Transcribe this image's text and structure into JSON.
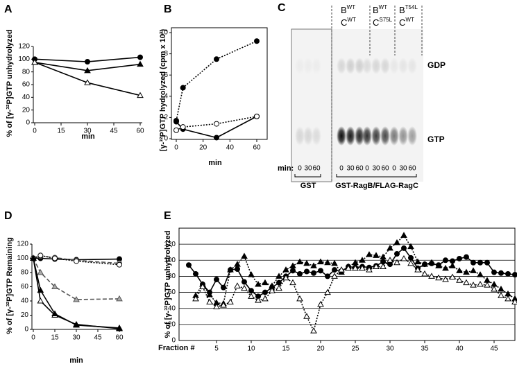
{
  "chart_data": [
    {
      "type": "line",
      "panel": "A",
      "ylabel": "% of [γ-³²P]GTP unhydrolyzed",
      "xlabel": "min",
      "x": [
        0,
        30,
        60
      ],
      "xlim": [
        0,
        60
      ],
      "xticks": [
        0,
        15,
        30,
        45,
        60
      ],
      "ylim": [
        0,
        120
      ],
      "yticks": [
        0,
        20,
        40,
        60,
        80,
        100,
        120
      ],
      "series": [
        {
          "color": "#000000",
          "marker": "circle",
          "fill": "#000000",
          "dash": "solid",
          "values": [
            100,
            96,
            103
          ]
        },
        {
          "color": "#000000",
          "marker": "triangle",
          "fill": "#000000",
          "dash": "solid",
          "values": [
            95,
            82,
            92
          ]
        },
        {
          "color": "#000000",
          "marker": "triangle",
          "fill": "#ffffff",
          "dash": "solid",
          "values": [
            95,
            63,
            43
          ]
        }
      ]
    },
    {
      "type": "line",
      "panel": "B",
      "ylabel": "[γ-³²P]GTP hydrolyzed (cpm x 10³)",
      "xlabel": "min",
      "x": [
        0,
        5,
        30,
        60
      ],
      "xlim": [
        0,
        60
      ],
      "xticks": [
        0,
        20,
        40,
        60
      ],
      "ylim": [
        0,
        10
      ],
      "yticks": [
        0,
        2,
        4,
        6,
        8,
        10
      ],
      "series": [
        {
          "color": "#000000",
          "marker": "circle",
          "fill": "#000000",
          "dash": "dotted",
          "values": [
            1.7,
            4.8,
            7.5,
            9.2
          ]
        },
        {
          "color": "#000000",
          "marker": "circle",
          "fill": "#000000",
          "dash": "solid",
          "values": [
            1.6,
            0.9,
            0.1,
            2.1
          ]
        },
        {
          "color": "#000000",
          "marker": "circle",
          "fill": "#ffffff",
          "dash": "dotted",
          "values": [
            0.8,
            1.1,
            1.4,
            2.1
          ]
        }
      ]
    },
    {
      "type": "line",
      "panel": "D",
      "ylabel": "% of [γ-³²P]GTP Remaining",
      "xlabel": "min",
      "x": [
        0,
        5,
        15,
        30,
        60
      ],
      "xlim": [
        0,
        60
      ],
      "xticks": [
        0,
        15,
        30,
        45,
        60
      ],
      "ylim": [
        0,
        120
      ],
      "yticks": [
        0,
        20,
        40,
        60,
        80,
        100,
        120
      ],
      "series": [
        {
          "color": "#000000",
          "marker": "circle",
          "fill": "#000000",
          "dash": "solid",
          "values": [
            100,
            100,
            99,
            98,
            99
          ]
        },
        {
          "color": "#555555",
          "marker": "circle",
          "fill": "#aaaaaa",
          "dash": "dashed",
          "values": [
            100,
            103,
            101,
            97,
            93
          ]
        },
        {
          "color": "#000000",
          "marker": "circle",
          "fill": "#ffffff",
          "dash": "dotted",
          "values": [
            100,
            104,
            100,
            96,
            91
          ]
        },
        {
          "color": "#555555",
          "marker": "triangle",
          "fill": "#aaaaaa",
          "dash": "dashed",
          "values": [
            100,
            80,
            60,
            42,
            43
          ]
        },
        {
          "color": "#000000",
          "marker": "triangle",
          "fill": "#ffffff",
          "dash": "solid",
          "values": [
            100,
            40,
            20,
            7,
            1
          ]
        },
        {
          "color": "#000000",
          "marker": "triangle",
          "fill": "#000000",
          "dash": "solid",
          "values": [
            100,
            55,
            22,
            6,
            2
          ]
        }
      ]
    },
    {
      "type": "line",
      "panel": "E",
      "ylabel": "% of [γ-³²P]GTP unhydrolyzed",
      "xlabel": "Fraction #",
      "x": [
        1,
        2,
        3,
        4,
        5,
        6,
        7,
        8,
        9,
        10,
        11,
        12,
        13,
        14,
        15,
        16,
        17,
        18,
        19,
        20,
        21,
        22,
        23,
        24,
        25,
        26,
        27,
        28,
        29,
        30,
        31,
        32,
        33,
        34,
        35,
        36,
        37,
        38,
        39,
        40,
        41,
        42,
        43,
        44,
        45,
        46,
        47,
        48
      ],
      "xlim": [
        -0.4,
        48
      ],
      "xticks": [
        5,
        10,
        15,
        20,
        25,
        30,
        35,
        40,
        45
      ],
      "ylim": [
        0,
        140
      ],
      "yticks": [
        0,
        20,
        40,
        60,
        80,
        100,
        120
      ],
      "grid": true,
      "series": [
        {
          "color": "#000000",
          "marker": "circle",
          "fill": "#000000",
          "dash": "solid",
          "values": [
            94,
            83,
            70,
            60,
            76,
            66,
            88,
            89,
            73,
            62,
            55,
            60,
            66,
            72,
            80,
            87,
            83,
            86,
            84,
            87,
            80,
            88,
            86,
            92,
            91,
            92,
            91,
            93,
            98,
            95,
            108,
            115,
            103,
            90,
            95,
            96,
            94,
            100,
            99,
            102,
            104,
            97,
            97,
            97,
            85,
            84,
            83,
            82
          ]
        },
        {
          "color": "#000000",
          "marker": "triangle",
          "fill": "#000000",
          "dash": "dotted",
          "values": [
            null,
            56,
            70,
            57,
            47,
            46,
            88,
            95,
            105,
            82,
            70,
            72,
            68,
            80,
            88,
            93,
            98,
            96,
            93,
            98,
            97,
            96,
            85,
            92,
            97,
            100,
            107,
            106,
            104,
            115,
            122,
            131,
            117,
            98,
            95,
            97,
            93,
            90,
            93,
            87,
            85,
            87,
            82,
            75,
            70,
            64,
            58,
            52
          ]
        },
        {
          "color": "#000000",
          "marker": "triangle",
          "fill": "#ffffff",
          "dash": "dotted",
          "values": [
            null,
            52,
            67,
            48,
            42,
            44,
            48,
            68,
            65,
            55,
            50,
            52,
            62,
            65,
            78,
            72,
            52,
            30,
            12,
            45,
            60,
            80,
            88,
            90,
            90,
            90,
            88,
            92,
            92,
            100,
            97,
            102,
            96,
            88,
            83,
            80,
            78,
            76,
            79,
            75,
            72,
            69,
            70,
            69,
            64,
            56,
            52,
            48
          ]
        }
      ]
    }
  ],
  "gel": {
    "panel": "C",
    "groups": [
      {
        "lines": [
          {
            "base": "B",
            "sup": "WT"
          },
          {
            "base": "C",
            "sup": "WT"
          }
        ]
      },
      {
        "lines": [
          {
            "base": "B",
            "sup": "WT"
          },
          {
            "base": "C",
            "sup": "S75L"
          }
        ]
      },
      {
        "lines": [
          {
            "base": "B",
            "sup": "T54L"
          },
          {
            "base": "C",
            "sup": "WT"
          }
        ]
      }
    ],
    "bands": [
      "GDP",
      "GTP"
    ],
    "time_label": "min:",
    "lanes": [
      [
        0,
        30,
        60
      ],
      [
        0,
        30,
        60
      ],
      [
        0,
        30,
        60
      ],
      [
        0,
        30,
        60
      ]
    ],
    "brackets": [
      "GST",
      "GST-RagB/FLAG-RagC"
    ]
  }
}
